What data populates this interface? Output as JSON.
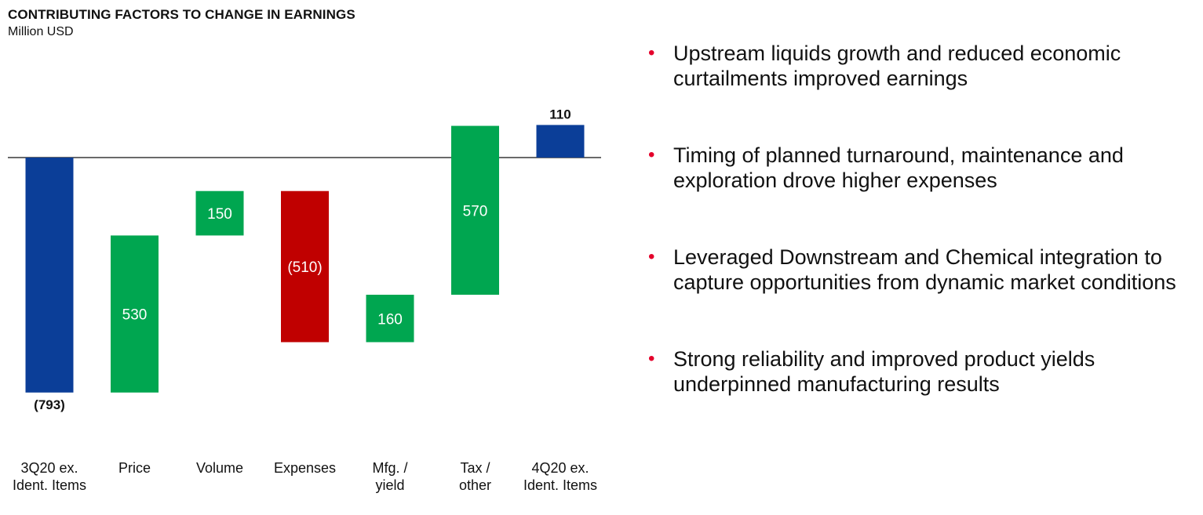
{
  "chart_data": {
    "type": "waterfall",
    "title": "CONTRIBUTING FACTORS TO CHANGE IN EARNINGS",
    "subtitle": "Million USD",
    "categories": [
      [
        "3Q20 ex.",
        "Ident. Items"
      ],
      [
        "Price"
      ],
      [
        "Volume"
      ],
      [
        "Expenses"
      ],
      [
        "Mfg. /",
        "yield"
      ],
      [
        "Tax /",
        "other"
      ],
      [
        "4Q20 ex.",
        "Ident. Items"
      ]
    ],
    "values": [
      -793,
      530,
      150,
      -510,
      160,
      570,
      110
    ],
    "value_labels": [
      "(793)",
      "530",
      "150",
      "(510)",
      "160",
      "570",
      "110"
    ],
    "bar_kinds": [
      "total",
      "delta",
      "delta",
      "delta",
      "delta",
      "delta",
      "total"
    ],
    "colors": {
      "total": "#0b3e98",
      "increase": "#00a650",
      "decrease": "#c00000",
      "bullet": "#e4002b"
    },
    "ylim": [
      -800,
      120
    ],
    "baseline": 0
  },
  "bullets": [
    "Upstream liquids growth and reduced economic curtailments improved earnings",
    "Timing of planned turnaround, maintenance and exploration drove higher expenses",
    "Leveraged Downstream and Chemical integration to capture opportunities from dynamic market conditions",
    "Strong reliability and improved product yields underpinned manufacturing results"
  ]
}
